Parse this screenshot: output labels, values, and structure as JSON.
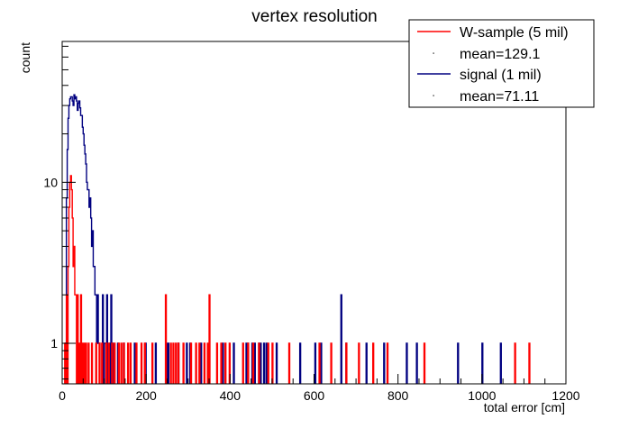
{
  "chart_data": {
    "type": "histogram",
    "title": "vertex resolution",
    "xlabel": "total error [cm]",
    "ylabel": "count",
    "xlim": [
      0,
      1200
    ],
    "ylim": [
      0.56,
      75
    ],
    "yscale": "log",
    "grid": false,
    "legend_position": "top-right",
    "x_ticks": [
      0,
      200,
      400,
      600,
      800,
      1000,
      1200
    ],
    "x_tick_labels": [
      "0",
      "200",
      "400",
      "600",
      "800",
      "1000",
      "1200"
    ],
    "y_tick_labels": [
      {
        "value": 1,
        "label": "1"
      },
      {
        "value": 10,
        "label": "10"
      }
    ],
    "legend": [
      {
        "label": "W-sample (5 mil)",
        "symbol": "line",
        "color": "#ff0000"
      },
      {
        "label": "mean=129.1",
        "symbol": "dot",
        "color": "#000000"
      },
      {
        "label": "signal (1 mil)",
        "symbol": "line",
        "color": "#000080"
      },
      {
        "label": "mean=71.11",
        "symbol": "dot",
        "color": "#000000"
      }
    ],
    "series": [
      {
        "name": "signal (1 mil)",
        "color": "#000080",
        "mean": 71.11,
        "bin_width": 2,
        "points": [
          [
            8,
            1
          ],
          [
            10,
            8
          ],
          [
            12,
            16
          ],
          [
            14,
            25
          ],
          [
            16,
            30
          ],
          [
            18,
            33
          ],
          [
            20,
            34
          ],
          [
            22,
            34
          ],
          [
            24,
            32
          ],
          [
            26,
            30
          ],
          [
            28,
            35
          ],
          [
            30,
            33
          ],
          [
            32,
            34
          ],
          [
            34,
            32
          ],
          [
            36,
            28
          ],
          [
            38,
            31
          ],
          [
            40,
            32
          ],
          [
            42,
            29
          ],
          [
            44,
            26
          ],
          [
            46,
            26
          ],
          [
            48,
            22
          ],
          [
            50,
            20
          ],
          [
            52,
            17
          ],
          [
            54,
            15
          ],
          [
            56,
            13
          ],
          [
            58,
            10
          ],
          [
            60,
            9
          ],
          [
            62,
            9
          ],
          [
            64,
            7
          ],
          [
            66,
            8
          ],
          [
            68,
            6
          ],
          [
            70,
            4
          ],
          [
            72,
            5
          ],
          [
            74,
            3
          ],
          [
            76,
            3
          ],
          [
            78,
            2
          ],
          [
            80,
            2
          ],
          [
            82,
            1
          ],
          [
            84,
            2
          ],
          [
            86,
            1
          ],
          [
            88,
            1
          ],
          [
            96,
            2
          ],
          [
            100,
            1
          ],
          [
            102,
            1
          ],
          [
            106,
            2
          ],
          [
            112,
            1
          ],
          [
            116,
            2
          ],
          [
            120,
            1
          ],
          [
            132,
            1
          ],
          [
            146,
            1
          ],
          [
            172,
            1
          ],
          [
            198,
            1
          ],
          [
            222,
            1
          ],
          [
            248,
            1
          ],
          [
            252,
            1
          ],
          [
            276,
            1
          ],
          [
            296,
            1
          ],
          [
            304,
            1
          ],
          [
            330,
            1
          ],
          [
            382,
            1
          ],
          [
            408,
            1
          ],
          [
            438,
            1
          ],
          [
            442,
            1
          ],
          [
            452,
            1
          ],
          [
            458,
            1
          ],
          [
            468,
            1
          ],
          [
            472,
            1
          ],
          [
            480,
            1
          ],
          [
            486,
            1
          ],
          [
            510,
            1
          ],
          [
            566,
            1
          ],
          [
            602,
            1
          ],
          [
            616,
            1
          ],
          [
            664,
            2
          ],
          [
            676,
            1
          ],
          [
            724,
            1
          ],
          [
            766,
            1
          ],
          [
            820,
            1
          ],
          [
            844,
            1
          ],
          [
            942,
            1
          ],
          [
            1000,
            1
          ],
          [
            1044,
            1
          ]
        ]
      },
      {
        "name": "W-sample (5 mil)",
        "color": "#ff0000",
        "mean": 129.1,
        "bin_width": 2,
        "points": [
          [
            6,
            1
          ],
          [
            10,
            2
          ],
          [
            14,
            3
          ],
          [
            16,
            7
          ],
          [
            18,
            10
          ],
          [
            20,
            11
          ],
          [
            22,
            9
          ],
          [
            24,
            6
          ],
          [
            26,
            3
          ],
          [
            28,
            4
          ],
          [
            30,
            2
          ],
          [
            32,
            2
          ],
          [
            36,
            2
          ],
          [
            40,
            1
          ],
          [
            44,
            2
          ],
          [
            48,
            1
          ],
          [
            52,
            1
          ],
          [
            56,
            1
          ],
          [
            62,
            1
          ],
          [
            70,
            1
          ],
          [
            80,
            1
          ],
          [
            88,
            1
          ],
          [
            94,
            1
          ],
          [
            104,
            1
          ],
          [
            110,
            1
          ],
          [
            118,
            1
          ],
          [
            124,
            1
          ],
          [
            134,
            1
          ],
          [
            140,
            1
          ],
          [
            146,
            1
          ],
          [
            156,
            1
          ],
          [
            162,
            1
          ],
          [
            176,
            1
          ],
          [
            188,
            1
          ],
          [
            196,
            1
          ],
          [
            214,
            1
          ],
          [
            246,
            2
          ],
          [
            258,
            1
          ],
          [
            264,
            1
          ],
          [
            270,
            1
          ],
          [
            276,
            1
          ],
          [
            288,
            1
          ],
          [
            306,
            1
          ],
          [
            318,
            1
          ],
          [
            326,
            1
          ],
          [
            338,
            1
          ],
          [
            346,
            1
          ],
          [
            350,
            2
          ],
          [
            368,
            1
          ],
          [
            378,
            1
          ],
          [
            388,
            1
          ],
          [
            398,
            1
          ],
          [
            430,
            1
          ],
          [
            442,
            1
          ],
          [
            454,
            1
          ],
          [
            468,
            1
          ],
          [
            490,
            1
          ],
          [
            500,
            1
          ],
          [
            540,
            1
          ],
          [
            612,
            1
          ],
          [
            640,
            1
          ],
          [
            676,
            1
          ],
          [
            706,
            1
          ],
          [
            740,
            1
          ],
          [
            774,
            1
          ],
          [
            862,
            1
          ],
          [
            1078,
            1
          ],
          [
            1112,
            1
          ]
        ]
      }
    ]
  }
}
